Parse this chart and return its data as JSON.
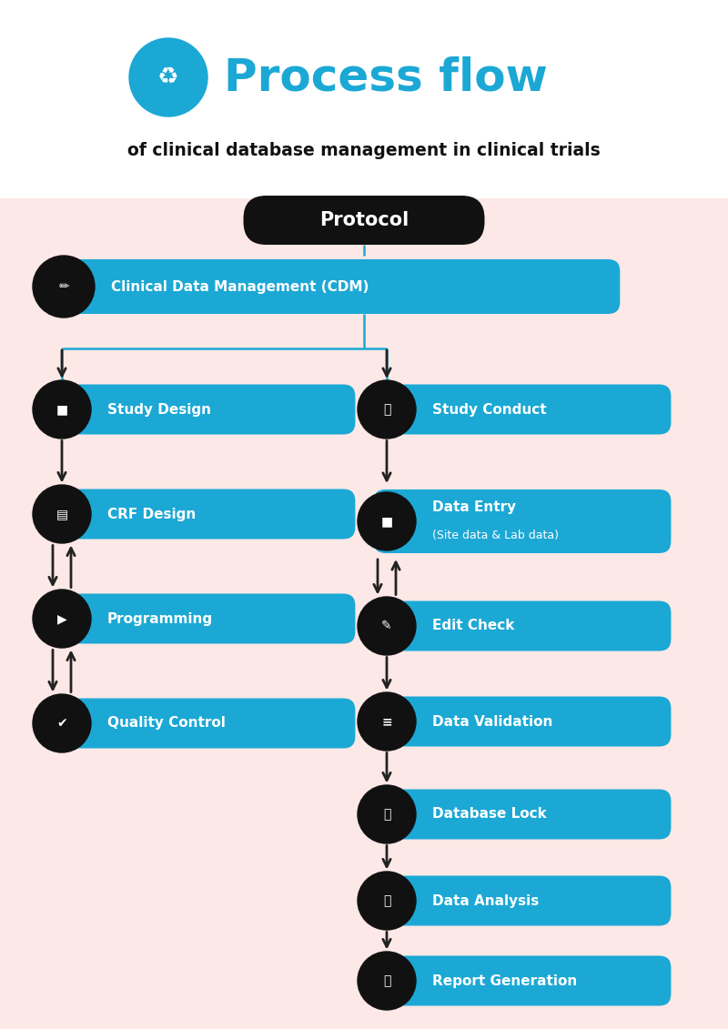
{
  "bg_color": "#fce8e6",
  "white_header_color": "#ffffff",
  "title_main": "Process flow",
  "title_sub": "of clinical database management in clinical trials",
  "title_color": "#1ba8d5",
  "subtitle_color": "#111111",
  "box_color": "#1ba8d5",
  "icon_bg_color": "#111111",
  "protocol_text": "Protocol",
  "cdm_text": "Clinical Data Management (CDM)",
  "left_nodes": [
    {
      "label": "Study Design",
      "icon": "■",
      "line2": ""
    },
    {
      "label": "CRF Design",
      "icon": "▤",
      "line2": ""
    },
    {
      "label": "Programming",
      "icon": "▶",
      "line2": ""
    },
    {
      "label": "Quality Control",
      "icon": "✔",
      "line2": ""
    }
  ],
  "right_nodes": [
    {
      "label": "Study Conduct",
      "icon": "🔍",
      "line2": ""
    },
    {
      "label": "Data Entry",
      "icon": "■",
      "line2": "(Site data & Lab data)"
    },
    {
      "label": "Edit Check",
      "icon": "✎",
      "line2": ""
    },
    {
      "label": "Data Validation",
      "icon": "≡",
      "line2": ""
    },
    {
      "label": "Database Lock",
      "icon": "🔒",
      "line2": ""
    },
    {
      "label": "Data Analysis",
      "icon": "📈",
      "line2": ""
    },
    {
      "label": "Report Generation",
      "icon": "📱",
      "line2": ""
    }
  ],
  "line_color": "#1ba8d5",
  "arrow_color": "#222222",
  "text_white": "#ffffff",
  "text_dark": "#111111",
  "figw": 8.0,
  "figh": 11.31
}
